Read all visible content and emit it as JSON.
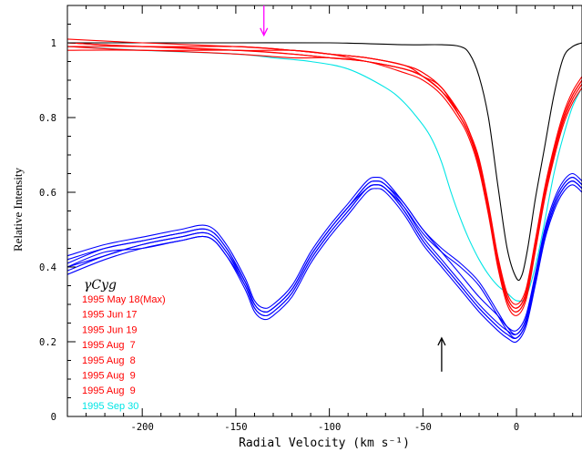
{
  "chart_data": {
    "type": "line",
    "title": "",
    "xlabel": "Radial Velocity (km s⁻¹)",
    "ylabel": "Relative Intensity",
    "xlim": [
      -240,
      35
    ],
    "ylim": [
      0,
      1.1
    ],
    "xticks": [
      -200,
      -150,
      -100,
      -50,
      0
    ],
    "xtick_labels": [
      "-200",
      "-150",
      "-100",
      "-50",
      "0"
    ],
    "yticks": [
      0.2,
      0.4,
      0.6,
      0.8,
      1.0
    ],
    "ytick_labels": [
      "0.2",
      "0.4",
      "0.6",
      "0.8",
      "1"
    ],
    "extra_labels": {
      "y0": "0"
    },
    "grid": false,
    "legend": {
      "title": "γCyg",
      "placement": "bottom-left",
      "entries": [
        {
          "label": "1995 May 18(Max)",
          "color": "#ff0000"
        },
        {
          "label": "1995 Jun 17",
          "color": "#ff0000"
        },
        {
          "label": "1995 Jun 19",
          "color": "#ff0000"
        },
        {
          "label": "1995 Aug  7",
          "color": "#ff0000"
        },
        {
          "label": "1995 Aug  8",
          "color": "#ff0000"
        },
        {
          "label": "1995 Aug  9",
          "color": "#ff0000"
        },
        {
          "label": "1995 Aug  9",
          "color": "#ff0000"
        },
        {
          "label": "1995 Sep 30",
          "color": "#00e5e5"
        }
      ]
    },
    "annotations": [
      {
        "type": "arrow",
        "direction": "down",
        "x": -135,
        "y_from": 1.1,
        "y_to": 1.02,
        "color": "#ff00ff"
      },
      {
        "type": "arrow",
        "direction": "up",
        "x": -40,
        "y_from": 0.12,
        "y_to": 0.21,
        "color": "#000000"
      }
    ],
    "series": [
      {
        "color": "#000000",
        "x": [
          -240,
          -200,
          -150,
          -100,
          -60,
          -40,
          -30,
          -25,
          -20,
          -15,
          -10,
          -5,
          0,
          3,
          6,
          10,
          15,
          20,
          25,
          30,
          35
        ],
        "values": [
          1.0,
          1.0,
          1.0,
          1.0,
          0.995,
          0.995,
          0.99,
          0.97,
          0.91,
          0.8,
          0.62,
          0.45,
          0.37,
          0.38,
          0.45,
          0.58,
          0.72,
          0.86,
          0.96,
          0.99,
          1.0
        ]
      },
      {
        "color": "#00e5e5",
        "x": [
          -240,
          -200,
          -150,
          -130,
          -110,
          -90,
          -70,
          -60,
          -50,
          -45,
          -40,
          -35,
          -30,
          -25,
          -20,
          -15,
          -10,
          -5,
          0,
          5,
          10,
          15,
          20,
          25,
          30,
          35
        ],
        "values": [
          0.99,
          0.98,
          0.97,
          0.96,
          0.95,
          0.93,
          0.88,
          0.84,
          0.78,
          0.74,
          0.68,
          0.6,
          0.53,
          0.47,
          0.42,
          0.38,
          0.35,
          0.33,
          0.31,
          0.32,
          0.4,
          0.52,
          0.65,
          0.75,
          0.83,
          0.88
        ]
      },
      {
        "color": "#ff0000",
        "x": [
          -240,
          -200,
          -150,
          -120,
          -100,
          -80,
          -60,
          -50,
          -40,
          -30,
          -25,
          -20,
          -15,
          -10,
          -5,
          0,
          5,
          10,
          15,
          20,
          25,
          30,
          35
        ],
        "values": [
          1.0,
          0.99,
          0.99,
          0.98,
          0.97,
          0.96,
          0.94,
          0.92,
          0.88,
          0.81,
          0.76,
          0.68,
          0.56,
          0.42,
          0.32,
          0.29,
          0.33,
          0.46,
          0.6,
          0.71,
          0.8,
          0.86,
          0.9
        ]
      },
      {
        "color": "#ff0000",
        "x": [
          -240,
          -200,
          -150,
          -120,
          -100,
          -80,
          -60,
          -50,
          -40,
          -30,
          -25,
          -20,
          -15,
          -10,
          -5,
          0,
          5,
          10,
          15,
          20,
          25,
          30,
          35
        ],
        "values": [
          0.99,
          0.98,
          0.98,
          0.97,
          0.96,
          0.95,
          0.93,
          0.91,
          0.87,
          0.8,
          0.75,
          0.67,
          0.55,
          0.41,
          0.31,
          0.28,
          0.32,
          0.45,
          0.59,
          0.7,
          0.79,
          0.85,
          0.89
        ]
      },
      {
        "color": "#ff0000",
        "x": [
          -240,
          -200,
          -150,
          -120,
          -100,
          -80,
          -60,
          -50,
          -40,
          -30,
          -25,
          -20,
          -15,
          -10,
          -5,
          0,
          5,
          10,
          15,
          20,
          25,
          30,
          35
        ],
        "values": [
          1.01,
          1.0,
          0.99,
          0.98,
          0.97,
          0.96,
          0.94,
          0.91,
          0.87,
          0.81,
          0.76,
          0.69,
          0.57,
          0.43,
          0.33,
          0.3,
          0.34,
          0.47,
          0.61,
          0.72,
          0.81,
          0.87,
          0.91
        ]
      },
      {
        "color": "#ff0000",
        "x": [
          -240,
          -200,
          -150,
          -120,
          -100,
          -80,
          -60,
          -50,
          -40,
          -30,
          -25,
          -20,
          -15,
          -10,
          -5,
          0,
          5,
          10,
          15,
          20,
          25,
          30,
          35
        ],
        "values": [
          0.98,
          0.98,
          0.97,
          0.96,
          0.96,
          0.95,
          0.92,
          0.9,
          0.86,
          0.79,
          0.74,
          0.66,
          0.54,
          0.4,
          0.3,
          0.27,
          0.31,
          0.44,
          0.58,
          0.69,
          0.78,
          0.84,
          0.88
        ]
      },
      {
        "color": "#ff0000",
        "x": [
          -240,
          -200,
          -150,
          -120,
          -100,
          -80,
          -60,
          -50,
          -40,
          -30,
          -25,
          -20,
          -15,
          -10,
          -5,
          0,
          5,
          10,
          15,
          20,
          25,
          30,
          35
        ],
        "values": [
          1.0,
          0.99,
          0.98,
          0.98,
          0.97,
          0.95,
          0.93,
          0.91,
          0.88,
          0.8,
          0.75,
          0.68,
          0.56,
          0.42,
          0.32,
          0.29,
          0.33,
          0.46,
          0.6,
          0.71,
          0.8,
          0.86,
          0.9
        ]
      },
      {
        "color": "#ff0000",
        "x": [
          -240,
          -200,
          -150,
          -120,
          -100,
          -80,
          -60,
          -50,
          -40,
          -30,
          -25,
          -20,
          -15,
          -10,
          -5,
          0,
          5,
          10,
          15,
          20,
          25,
          30,
          35
        ],
        "values": [
          0.99,
          0.99,
          0.98,
          0.97,
          0.96,
          0.95,
          0.93,
          0.91,
          0.87,
          0.8,
          0.75,
          0.67,
          0.55,
          0.41,
          0.31,
          0.28,
          0.32,
          0.45,
          0.59,
          0.7,
          0.79,
          0.85,
          0.89
        ]
      },
      {
        "color": "#ff0000",
        "x": [
          -240,
          -200,
          -150,
          -120,
          -100,
          -80,
          -60,
          -50,
          -40,
          -30,
          -25,
          -20,
          -15,
          -10,
          -5,
          0,
          5,
          10,
          15,
          20,
          25,
          30,
          35
        ],
        "values": [
          1.0,
          0.99,
          0.99,
          0.98,
          0.97,
          0.96,
          0.94,
          0.92,
          0.88,
          0.81,
          0.76,
          0.68,
          0.56,
          0.42,
          0.32,
          0.29,
          0.33,
          0.46,
          0.6,
          0.71,
          0.8,
          0.86,
          0.9
        ]
      },
      {
        "color": "#0000ff",
        "x": [
          -240,
          -220,
          -200,
          -180,
          -165,
          -155,
          -145,
          -140,
          -135,
          -130,
          -120,
          -110,
          -100,
          -90,
          -80,
          -75,
          -70,
          -60,
          -50,
          -40,
          -30,
          -20,
          -10,
          -5,
          0,
          5,
          10,
          15,
          20,
          25,
          30,
          35
        ],
        "values": [
          0.41,
          0.45,
          0.47,
          0.49,
          0.5,
          0.45,
          0.36,
          0.3,
          0.28,
          0.29,
          0.34,
          0.43,
          0.5,
          0.56,
          0.62,
          0.63,
          0.62,
          0.56,
          0.48,
          0.42,
          0.36,
          0.3,
          0.25,
          0.23,
          0.22,
          0.26,
          0.37,
          0.49,
          0.57,
          0.62,
          0.64,
          0.62
        ]
      },
      {
        "color": "#0000ff",
        "x": [
          -240,
          -220,
          -200,
          -180,
          -165,
          -155,
          -145,
          -140,
          -135,
          -130,
          -120,
          -110,
          -100,
          -90,
          -80,
          -75,
          -70,
          -60,
          -50,
          -40,
          -30,
          -20,
          -10,
          -5,
          0,
          5,
          10,
          15,
          20,
          25,
          30,
          35
        ],
        "values": [
          0.39,
          0.43,
          0.46,
          0.48,
          0.49,
          0.44,
          0.35,
          0.29,
          0.27,
          0.28,
          0.33,
          0.42,
          0.49,
          0.55,
          0.61,
          0.62,
          0.61,
          0.55,
          0.47,
          0.41,
          0.35,
          0.29,
          0.24,
          0.22,
          0.21,
          0.25,
          0.36,
          0.48,
          0.56,
          0.61,
          0.63,
          0.61
        ]
      },
      {
        "color": "#0000ff",
        "x": [
          -240,
          -220,
          -200,
          -180,
          -165,
          -155,
          -145,
          -140,
          -135,
          -130,
          -120,
          -110,
          -100,
          -90,
          -80,
          -75,
          -70,
          -60,
          -50,
          -40,
          -30,
          -20,
          -10,
          -5,
          0,
          5,
          10,
          15,
          20,
          25,
          30,
          35
        ],
        "values": [
          0.43,
          0.46,
          0.48,
          0.5,
          0.51,
          0.46,
          0.37,
          0.31,
          0.29,
          0.3,
          0.35,
          0.44,
          0.51,
          0.57,
          0.63,
          0.64,
          0.63,
          0.57,
          0.5,
          0.44,
          0.38,
          0.32,
          0.27,
          0.24,
          0.23,
          0.27,
          0.38,
          0.5,
          0.58,
          0.63,
          0.65,
          0.63
        ]
      },
      {
        "color": "#0000ff",
        "x": [
          -240,
          -220,
          -200,
          -180,
          -165,
          -155,
          -145,
          -140,
          -135,
          -130,
          -120,
          -110,
          -100,
          -90,
          -80,
          -75,
          -70,
          -60,
          -50,
          -40,
          -30,
          -20,
          -10,
          -5,
          0,
          5,
          10,
          15,
          20,
          25,
          30,
          35
        ],
        "values": [
          0.4,
          0.44,
          0.45,
          0.47,
          0.48,
          0.43,
          0.34,
          0.28,
          0.26,
          0.27,
          0.32,
          0.41,
          0.48,
          0.54,
          0.6,
          0.61,
          0.6,
          0.54,
          0.46,
          0.4,
          0.34,
          0.28,
          0.23,
          0.21,
          0.2,
          0.24,
          0.35,
          0.47,
          0.55,
          0.6,
          0.62,
          0.6
        ]
      },
      {
        "color": "#0000ff",
        "x": [
          -240,
          -220,
          -200,
          -180,
          -165,
          -155,
          -145,
          -140,
          -135,
          -130,
          -120,
          -110,
          -100,
          -90,
          -80,
          -75,
          -70,
          -60,
          -50,
          -40,
          -30,
          -20,
          -10,
          -5,
          0,
          5,
          10,
          15,
          20,
          25,
          30,
          35
        ],
        "values": [
          0.42,
          0.45,
          0.47,
          0.49,
          0.5,
          0.45,
          0.36,
          0.3,
          0.28,
          0.29,
          0.34,
          0.43,
          0.5,
          0.56,
          0.62,
          0.63,
          0.62,
          0.57,
          0.5,
          0.45,
          0.41,
          0.36,
          0.28,
          0.24,
          0.22,
          0.26,
          0.37,
          0.49,
          0.57,
          0.62,
          0.64,
          0.62
        ]
      },
      {
        "color": "#0000ff",
        "x": [
          -240,
          -220,
          -200,
          -180,
          -165,
          -155,
          -145,
          -140,
          -135,
          -130,
          -120,
          -110,
          -100,
          -90,
          -80,
          -75,
          -70,
          -60,
          -50,
          -40,
          -30,
          -20,
          -10,
          -5,
          0,
          5,
          10,
          15,
          20,
          25,
          30,
          35
        ],
        "values": [
          0.38,
          0.42,
          0.45,
          0.47,
          0.48,
          0.43,
          0.35,
          0.29,
          0.27,
          0.28,
          0.33,
          0.42,
          0.49,
          0.55,
          0.61,
          0.62,
          0.61,
          0.55,
          0.47,
          0.41,
          0.35,
          0.29,
          0.24,
          0.22,
          0.21,
          0.25,
          0.36,
          0.48,
          0.56,
          0.61,
          0.63,
          0.61
        ]
      },
      {
        "color": "#0000ff",
        "x": [
          -240,
          -220,
          -200,
          -180,
          -165,
          -155,
          -145,
          -140,
          -135,
          -130,
          -120,
          -110,
          -100,
          -90,
          -80,
          -75,
          -70,
          -60,
          -50,
          -40,
          -30,
          -20,
          -10,
          -5,
          0,
          5,
          10,
          15,
          20,
          25,
          30,
          35
        ],
        "values": [
          0.4,
          0.43,
          0.46,
          0.48,
          0.49,
          0.44,
          0.36,
          0.3,
          0.28,
          0.29,
          0.34,
          0.43,
          0.5,
          0.56,
          0.61,
          0.62,
          0.61,
          0.56,
          0.49,
          0.44,
          0.4,
          0.35,
          0.27,
          0.23,
          0.21,
          0.25,
          0.36,
          0.48,
          0.56,
          0.61,
          0.63,
          0.61
        ]
      }
    ]
  }
}
